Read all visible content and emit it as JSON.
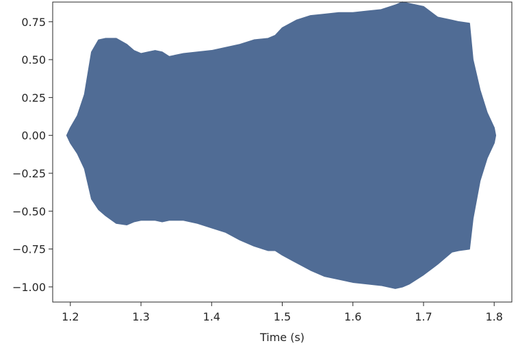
{
  "chart_data": {
    "type": "area",
    "title": "",
    "xlabel": "Time (s)",
    "ylabel": "",
    "xlim": [
      1.175,
      1.825
    ],
    "ylim": [
      -1.1,
      0.88
    ],
    "grid": false,
    "legend": "none",
    "color": "#506c95",
    "xticks": [
      1.2,
      1.3,
      1.4,
      1.5,
      1.6,
      1.7,
      1.8
    ],
    "xtick_labels": [
      "1.2",
      "1.3",
      "1.4",
      "1.5",
      "1.6",
      "1.7",
      "1.8"
    ],
    "yticks": [
      0.75,
      0.5,
      0.25,
      0.0,
      -0.25,
      -0.5,
      -0.75,
      -1.0
    ],
    "ytick_labels": [
      "0.75",
      "0.50",
      "0.25",
      "0.00",
      "−0.25",
      "−0.50",
      "−0.75",
      "−1.00"
    ],
    "series": [
      {
        "x": [
          1.195,
          1.2,
          1.21,
          1.22,
          1.23,
          1.24,
          1.25,
          1.265,
          1.28,
          1.29,
          1.3,
          1.31,
          1.32,
          1.33,
          1.34,
          1.36,
          1.38,
          1.4,
          1.42,
          1.44,
          1.46,
          1.48,
          1.49,
          1.5,
          1.52,
          1.54,
          1.56,
          1.58,
          1.6,
          1.62,
          1.64,
          1.66,
          1.67,
          1.68,
          1.7,
          1.72,
          1.74,
          1.75,
          1.765,
          1.77,
          1.78,
          1.79,
          1.8,
          1.802
        ],
        "upper": [
          0.0,
          0.05,
          0.13,
          0.27,
          0.55,
          0.63,
          0.64,
          0.64,
          0.6,
          0.56,
          0.54,
          0.55,
          0.56,
          0.55,
          0.52,
          0.54,
          0.55,
          0.56,
          0.58,
          0.6,
          0.63,
          0.64,
          0.66,
          0.71,
          0.76,
          0.79,
          0.8,
          0.81,
          0.81,
          0.82,
          0.83,
          0.86,
          0.88,
          0.87,
          0.85,
          0.78,
          0.76,
          0.75,
          0.74,
          0.5,
          0.3,
          0.15,
          0.05,
          0.0
        ],
        "lower": [
          0.0,
          -0.05,
          -0.12,
          -0.22,
          -0.42,
          -0.49,
          -0.53,
          -0.58,
          -0.59,
          -0.57,
          -0.56,
          -0.56,
          -0.56,
          -0.57,
          -0.56,
          -0.56,
          -0.58,
          -0.61,
          -0.64,
          -0.69,
          -0.73,
          -0.76,
          -0.76,
          -0.79,
          -0.84,
          -0.89,
          -0.93,
          -0.95,
          -0.97,
          -0.98,
          -0.99,
          -1.01,
          -1.0,
          -0.98,
          -0.92,
          -0.85,
          -0.77,
          -0.76,
          -0.75,
          -0.55,
          -0.3,
          -0.15,
          -0.05,
          0.0
        ]
      }
    ]
  }
}
